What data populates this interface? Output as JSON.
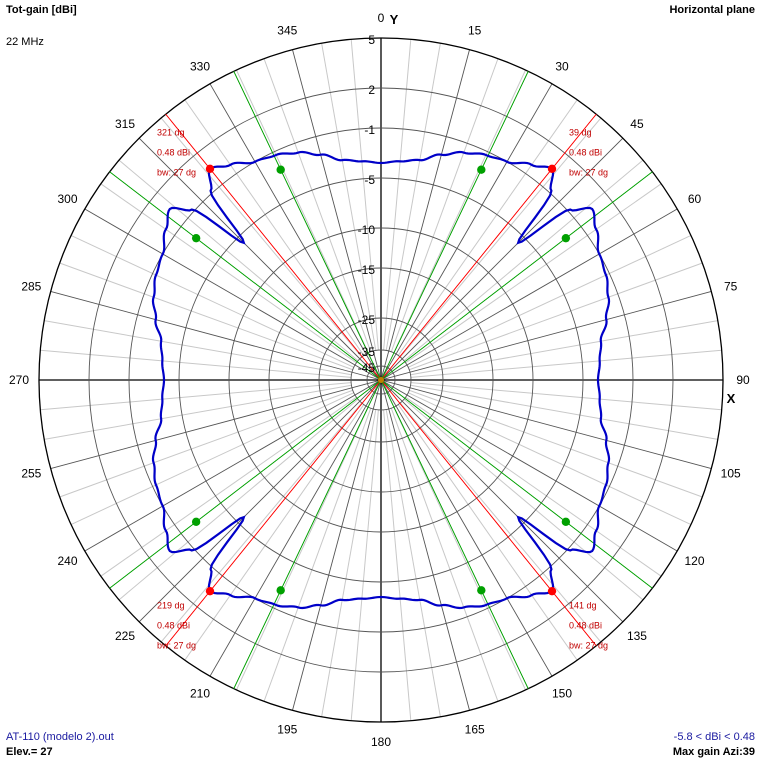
{
  "header": {
    "title": "Tot-gain [dBi]",
    "plane": "Horizontal plane",
    "frequency": "22 MHz"
  },
  "footer": {
    "file": "AT-110 (modelo 2).out",
    "elevation": "Elev.= 27",
    "range": "-5.8 < dBi < 0.48",
    "max_gain": "Max gain Azi:39"
  },
  "axes": {
    "y_label": "Y",
    "x_label": "X"
  },
  "chart_data": {
    "type": "polar",
    "title": "Tot-gain [dBi]",
    "ring_labels": [
      "5",
      "2",
      "-1",
      "-5",
      "-10",
      "-15",
      "-25",
      "-35",
      "-45"
    ],
    "angle_labels": [
      "0",
      "15",
      "30",
      "45",
      "60",
      "75",
      "90",
      "105",
      "120",
      "135",
      "150",
      "165",
      "180",
      "195",
      "210",
      "225",
      "240",
      "255",
      "270",
      "285",
      "300",
      "315",
      "330",
      "345"
    ],
    "gain_range": [
      -5.8,
      0.48
    ],
    "max_gain_dbi": 0.48,
    "pattern": {
      "azimuth_deg": [
        0,
        5,
        10,
        15,
        20,
        25,
        30,
        35,
        39,
        42,
        45
      ],
      "gain_dbi": [
        -3.8,
        -3.6,
        -3.3,
        -2.5,
        -1.8,
        -1.3,
        -1.0,
        -0.2,
        0.48,
        -0.8,
        -5.8
      ],
      "symmetry": "4-fold"
    },
    "markers": [
      {
        "azimuth": 39,
        "gain": 0.48,
        "color": "#ff0000",
        "label_lines": [
          "39 dg",
          "0.48 dBi",
          "bw: 27 dg"
        ]
      },
      {
        "azimuth": 141,
        "gain": 0.48,
        "color": "#ff0000",
        "label_lines": [
          "141 dg",
          "0.48 dBi",
          "bw: 27 dg"
        ]
      },
      {
        "azimuth": 219,
        "gain": 0.48,
        "color": "#ff0000",
        "label_lines": [
          "219 dg",
          "0.48 dBi",
          "bw: 27 dg"
        ]
      },
      {
        "azimuth": 321,
        "gain": 0.48,
        "color": "#ff0000",
        "label_lines": [
          "321 dg",
          "0.48 dBi",
          "bw: 27 dg"
        ]
      },
      {
        "azimuth": 25.5,
        "gain": -2.52,
        "color": "#00a000"
      },
      {
        "azimuth": 52.5,
        "gain": -2.52,
        "color": "#00a000"
      },
      {
        "azimuth": 127.5,
        "gain": -2.52,
        "color": "#00a000"
      },
      {
        "azimuth": 154.5,
        "gain": -2.52,
        "color": "#00a000"
      },
      {
        "azimuth": 205.5,
        "gain": -2.52,
        "color": "#00a000"
      },
      {
        "azimuth": 232.5,
        "gain": -2.52,
        "color": "#00a000"
      },
      {
        "azimuth": 307.5,
        "gain": -2.52,
        "color": "#00a000"
      },
      {
        "azimuth": 334.5,
        "gain": -2.52,
        "color": "#00a000"
      }
    ],
    "colors": {
      "pattern": "#0000c8",
      "max_marker": "#ff0000",
      "bw_marker": "#00a000",
      "grid": "#000000",
      "minor_grid": "#c8c8c8",
      "annotation": "#c00000"
    }
  }
}
